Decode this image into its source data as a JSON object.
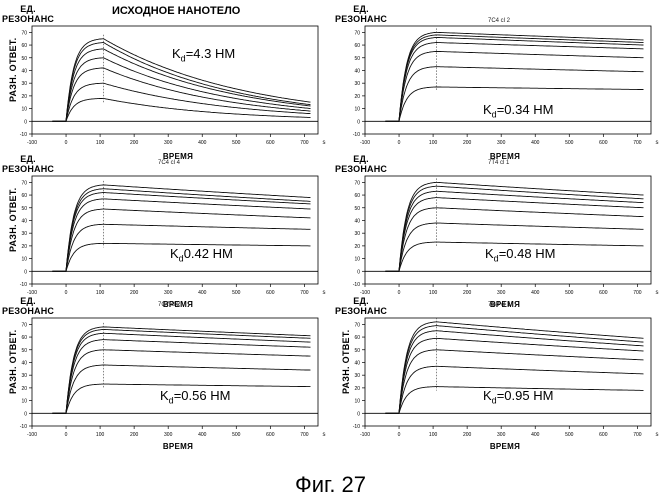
{
  "figure": {
    "caption": "Фиг. 27"
  },
  "chart_data": [
    {
      "type": "line",
      "title": "ИСХОДНОЕ НАНОТЕЛО",
      "subtitle": "",
      "y_top_label": [
        "ЕД.",
        "РЕЗОНАНС"
      ],
      "ylabel": "РАЗН. ОТВЕТ.",
      "xlabel": "ВРЕМЯ",
      "kd_prefix": "K",
      "kd_sub": "d",
      "kd_value": "=4.3 НМ",
      "xlim": [
        -100,
        740
      ],
      "ylim": [
        -10,
        75
      ],
      "xticks": [
        -100,
        0,
        100,
        200,
        300,
        400,
        500,
        600,
        700
      ],
      "yticks": [
        -10,
        0,
        10,
        20,
        30,
        40,
        50,
        60,
        70
      ],
      "x_unit": "s",
      "injection_start": 0,
      "injection_end": 110,
      "kinetics": "fast",
      "series": [
        {
          "peak": 65,
          "end": 15
        },
        {
          "peak": 62,
          "end": 13
        },
        {
          "peak": 57,
          "end": 12
        },
        {
          "peak": 50,
          "end": 10
        },
        {
          "peak": 42,
          "end": 8
        },
        {
          "peak": 30,
          "end": 6
        },
        {
          "peak": 18,
          "end": 3
        }
      ]
    },
    {
      "type": "line",
      "title": "",
      "subtitle": "7C4 cl 2",
      "y_top_label": [
        "ЕД.",
        "РЕЗОНАНС"
      ],
      "ylabel": "",
      "xlabel": "ВРЕМЯ",
      "kd_prefix": "K",
      "kd_sub": "d",
      "kd_value": "=0.34 НМ",
      "xlim": [
        -100,
        740
      ],
      "ylim": [
        -10,
        75
      ],
      "xticks": [
        -100,
        0,
        100,
        200,
        300,
        400,
        500,
        600,
        700
      ],
      "yticks": [
        -10,
        0,
        10,
        20,
        30,
        40,
        50,
        60,
        70
      ],
      "x_unit": "s",
      "injection_start": 0,
      "injection_end": 110,
      "kinetics": "slow",
      "series": [
        {
          "peak": 70,
          "end": 64
        },
        {
          "peak": 68,
          "end": 62
        },
        {
          "peak": 66,
          "end": 60
        },
        {
          "peak": 62,
          "end": 57
        },
        {
          "peak": 55,
          "end": 50
        },
        {
          "peak": 43,
          "end": 39
        },
        {
          "peak": 27,
          "end": 25
        }
      ]
    },
    {
      "type": "line",
      "title": "",
      "subtitle": "7C4 cl 4",
      "y_top_label": [
        "ЕД.",
        "РЕЗОНАНС"
      ],
      "ylabel": "РАЗН. ОТВЕТ.",
      "xlabel": "ВРЕМЯ",
      "kd_prefix": "K",
      "kd_sub": "d",
      "kd_value": "0.42 НМ",
      "xlim": [
        -100,
        740
      ],
      "ylim": [
        -10,
        75
      ],
      "xticks": [
        -100,
        0,
        100,
        200,
        300,
        400,
        500,
        600,
        700
      ],
      "yticks": [
        -10,
        0,
        10,
        20,
        30,
        40,
        50,
        60,
        70
      ],
      "x_unit": "s",
      "injection_start": 0,
      "injection_end": 110,
      "kinetics": "slow",
      "series": [
        {
          "peak": 68,
          "end": 58
        },
        {
          "peak": 65,
          "end": 55
        },
        {
          "peak": 62,
          "end": 53
        },
        {
          "peak": 57,
          "end": 49
        },
        {
          "peak": 49,
          "end": 42
        },
        {
          "peak": 37,
          "end": 33
        },
        {
          "peak": 22,
          "end": 20
        }
      ]
    },
    {
      "type": "line",
      "title": "",
      "subtitle": "7T4 cl 1",
      "y_top_label": [
        "ЕД.",
        "РЕЗОНАНС"
      ],
      "ylabel": "",
      "xlabel": "ВРЕМЯ",
      "kd_prefix": "K",
      "kd_sub": "d",
      "kd_value": "=0.48 НМ",
      "xlim": [
        -100,
        740
      ],
      "ylim": [
        -10,
        75
      ],
      "xticks": [
        -100,
        0,
        100,
        200,
        300,
        400,
        500,
        600,
        700
      ],
      "yticks": [
        -10,
        0,
        10,
        20,
        30,
        40,
        50,
        60,
        70
      ],
      "x_unit": "s",
      "injection_start": 0,
      "injection_end": 110,
      "kinetics": "slow",
      "series": [
        {
          "peak": 70,
          "end": 60
        },
        {
          "peak": 67,
          "end": 57
        },
        {
          "peak": 63,
          "end": 54
        },
        {
          "peak": 58,
          "end": 50
        },
        {
          "peak": 50,
          "end": 43
        },
        {
          "peak": 38,
          "end": 33
        },
        {
          "peak": 23,
          "end": 20
        }
      ]
    },
    {
      "type": "line",
      "title": "",
      "subtitle": "7G7 cl 2",
      "y_top_label": [
        "ЕД.",
        "РЕЗОНАНС"
      ],
      "ylabel": "РАЗН. ОТВЕТ.",
      "xlabel": "ВРЕМЯ",
      "kd_prefix": "K",
      "kd_sub": "d",
      "kd_value": "=0.56 НМ",
      "xlim": [
        -100,
        740
      ],
      "ylim": [
        -10,
        75
      ],
      "xticks": [
        -100,
        0,
        100,
        200,
        300,
        400,
        500,
        600,
        700
      ],
      "yticks": [
        -10,
        0,
        10,
        20,
        30,
        40,
        50,
        60,
        70
      ],
      "x_unit": "s",
      "injection_start": 0,
      "injection_end": 110,
      "kinetics": "slow",
      "series": [
        {
          "peak": 68,
          "end": 61
        },
        {
          "peak": 66,
          "end": 59
        },
        {
          "peak": 63,
          "end": 56
        },
        {
          "peak": 58,
          "end": 52
        },
        {
          "peak": 50,
          "end": 45
        },
        {
          "peak": 38,
          "end": 34
        },
        {
          "peak": 23,
          "end": 21
        }
      ]
    },
    {
      "type": "line",
      "title": "",
      "subtitle": "7G8 cl 1",
      "y_top_label": [
        "ЕД.",
        "РЕЗОНАНС"
      ],
      "ylabel": "РАЗН. ОТВЕТ.",
      "xlabel": "ВРЕМЯ",
      "kd_prefix": "K",
      "kd_sub": "d",
      "kd_value": "=0.95 НМ",
      "xlim": [
        -100,
        740
      ],
      "ylim": [
        -10,
        75
      ],
      "xticks": [
        -100,
        0,
        100,
        200,
        300,
        400,
        500,
        600,
        700
      ],
      "yticks": [
        -10,
        0,
        10,
        20,
        30,
        40,
        50,
        60,
        70
      ],
      "x_unit": "s",
      "injection_start": 0,
      "injection_end": 110,
      "kinetics": "slow",
      "series": [
        {
          "peak": 72,
          "end": 59
        },
        {
          "peak": 69,
          "end": 56
        },
        {
          "peak": 65,
          "end": 53
        },
        {
          "peak": 59,
          "end": 49
        },
        {
          "peak": 50,
          "end": 42
        },
        {
          "peak": 37,
          "end": 31
        },
        {
          "peak": 21,
          "end": 18
        }
      ]
    }
  ]
}
